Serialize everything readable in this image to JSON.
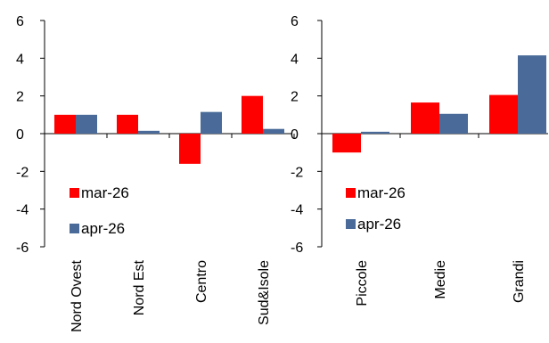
{
  "chart_data": [
    {
      "type": "bar",
      "categories": [
        "Nord Ovest",
        "Nord Est",
        "Centro",
        "Sud&Isole"
      ],
      "series": [
        {
          "name": "mar-26",
          "color": "#ff0000",
          "values": [
            1.0,
            1.0,
            -1.6,
            2.0
          ]
        },
        {
          "name": "apr-26",
          "color": "#4a6b99",
          "values": [
            1.0,
            0.15,
            1.15,
            0.25
          ]
        }
      ],
      "ylim": [
        -6,
        6
      ],
      "yticks": [
        "6",
        "4",
        "2",
        "0",
        "-2",
        "-4",
        "-6"
      ],
      "legend_position": "lower-left",
      "grid": false
    },
    {
      "type": "bar",
      "categories": [
        "Piccole",
        "Medie",
        "Grandi"
      ],
      "series": [
        {
          "name": "mar-26",
          "color": "#ff0000",
          "values": [
            -1.0,
            1.65,
            2.05
          ]
        },
        {
          "name": "apr-26",
          "color": "#4a6b99",
          "values": [
            0.1,
            1.05,
            4.15
          ]
        }
      ],
      "ylim": [
        -6,
        6
      ],
      "yticks": [
        "6",
        "4",
        "2",
        "0",
        "-2",
        "-4",
        "-6"
      ],
      "legend_position": "lower-left",
      "grid": false
    }
  ]
}
